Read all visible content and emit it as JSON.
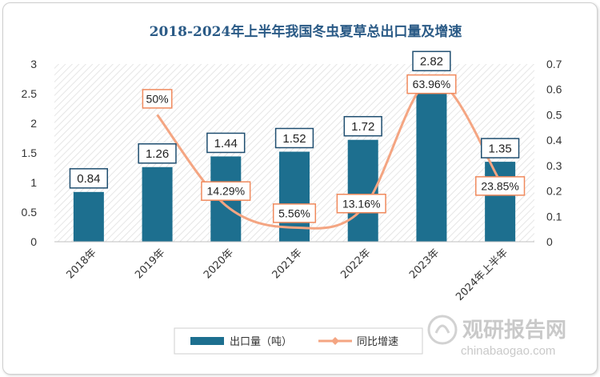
{
  "chart_data": {
    "type": "bar+line",
    "title": "2018-2024年上半年我国冬虫夏草总出口量及增速",
    "categories": [
      "2018年",
      "2019年",
      "2020年",
      "2021年",
      "2022年",
      "2023年",
      "2024年上半年"
    ],
    "series": [
      {
        "name": "出口量（吨）",
        "type": "bar",
        "axis": "left",
        "color": "#1d6f8f",
        "values": [
          0.84,
          1.26,
          1.44,
          1.52,
          1.72,
          2.82,
          1.35
        ],
        "labels": [
          "0.84",
          "1.26",
          "1.44",
          "1.52",
          "1.72",
          "2.82",
          "1.35"
        ]
      },
      {
        "name": "同比增速",
        "type": "line",
        "axis": "right",
        "color": "#f4a582",
        "values": [
          null,
          0.5,
          0.1429,
          0.0556,
          0.1316,
          0.6396,
          0.2385
        ],
        "labels": [
          "",
          "50%",
          "14.29%",
          "5.56%",
          "13.16%",
          "63.96%",
          "23.85%"
        ]
      }
    ],
    "y_left": {
      "min": 0,
      "max": 3,
      "ticks": [
        "0",
        "0.5",
        "1",
        "1.5",
        "2",
        "2.5",
        "3"
      ]
    },
    "y_right": {
      "min": 0,
      "max": 0.7,
      "ticks": [
        "0",
        "0.1",
        "0.2",
        "0.3",
        "0.4",
        "0.5",
        "0.6",
        "0.7"
      ]
    },
    "legend_position": "bottom"
  },
  "watermark": {
    "cn": "观研报告网",
    "en": "chinabaogao.com"
  }
}
